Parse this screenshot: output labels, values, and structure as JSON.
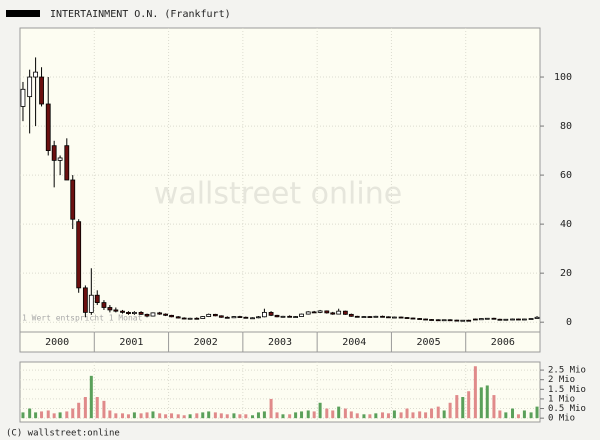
{
  "chart_data": {
    "type": "candlestick",
    "title": "INTERTAINMENT O.N. (Frankfurt)",
    "watermark": "wallstreet online",
    "note": "1 Wert entspricht 1 Monat",
    "legend_color": "#000000",
    "up_color": "#ffffff",
    "down_color": "#6b1010",
    "volume_up_color": "#5aa05a",
    "volume_down_color": "#e08a8a",
    "grid": true,
    "x": [
      2000.04,
      2000.13,
      2000.21,
      2000.29,
      2000.38,
      2000.46,
      2000.54,
      2000.63,
      2000.71,
      2000.79,
      2000.88,
      2000.96,
      2001.04,
      2001.13,
      2001.21,
      2001.29,
      2001.38,
      2001.46,
      2001.54,
      2001.63,
      2001.71,
      2001.79,
      2001.88,
      2001.96,
      2002.04,
      2002.13,
      2002.21,
      2002.29,
      2002.38,
      2002.46,
      2002.54,
      2002.63,
      2002.71,
      2002.79,
      2002.88,
      2002.96,
      2003.04,
      2003.13,
      2003.21,
      2003.29,
      2003.38,
      2003.46,
      2003.54,
      2003.63,
      2003.71,
      2003.79,
      2003.88,
      2003.96,
      2004.04,
      2004.13,
      2004.21,
      2004.29,
      2004.38,
      2004.46,
      2004.54,
      2004.63,
      2004.71,
      2004.79,
      2004.88,
      2004.96,
      2005.04,
      2005.13,
      2005.21,
      2005.29,
      2005.38,
      2005.46,
      2005.54,
      2005.63,
      2005.71,
      2005.79,
      2005.88,
      2005.96,
      2006.04,
      2006.13,
      2006.21,
      2006.29,
      2006.38,
      2006.46,
      2006.54,
      2006.63,
      2006.71,
      2006.79,
      2006.88,
      2006.96
    ],
    "open": [
      88,
      92,
      100,
      100,
      89,
      72,
      66,
      72,
      58,
      41,
      14,
      4,
      11,
      8,
      6,
      5,
      4.5,
      4,
      3.5,
      4,
      3.2,
      2.5,
      3.8,
      3.3,
      2.8,
      2.2,
      1.7,
      1.4,
      1.6,
      1.5,
      2.3,
      3.2,
      2.6,
      2,
      1.8,
      2.3,
      2,
      1.7,
      1.8,
      2.2,
      4,
      2.8,
      2.2,
      2.4,
      2.1,
      2.3,
      3.3,
      4.2,
      4,
      4.6,
      3.8,
      3.3,
      4.5,
      3.2,
      2.4,
      2.2,
      2.3,
      2.1,
      2.4,
      2.2,
      2,
      2.1,
      1.9,
      1.7,
      1.5,
      1.3,
      1.1,
      1,
      0.9,
      1,
      0.85,
      0.7,
      0.8,
      1.3,
      1,
      1.5,
      1.6,
      1.2,
      1.1,
      1.2,
      1.3,
      1.1,
      1.3,
      1.5
    ],
    "high": [
      98,
      103,
      108,
      104,
      100,
      74,
      68,
      75,
      60,
      42,
      15,
      22,
      13,
      9,
      7,
      6,
      5,
      4.5,
      4.5,
      4.5,
      3.5,
      4,
      4.2,
      3.6,
      3,
      2.5,
      2,
      1.8,
      2,
      2.5,
      3.5,
      3.4,
      2.8,
      2.4,
      2.5,
      2.6,
      2.3,
      2,
      2.5,
      5.5,
      4.5,
      3,
      2.6,
      2.8,
      2.5,
      3.5,
      4.5,
      4.6,
      5,
      4.8,
      4.2,
      5.5,
      4.7,
      3.5,
      2.6,
      2.5,
      2.5,
      2.6,
      2.7,
      2.4,
      2.3,
      2.3,
      2.1,
      1.9,
      1.7,
      1.5,
      1.3,
      1.2,
      1.1,
      1.2,
      1,
      0.9,
      1,
      1.5,
      1.6,
      1.7,
      1.8,
      1.4,
      1.3,
      1.5,
      1.5,
      1.4,
      1.6,
      2.5
    ],
    "low": [
      82,
      77,
      80,
      88,
      68,
      55,
      60,
      58,
      38,
      12,
      2,
      3,
      7,
      5,
      4,
      4,
      3.5,
      3,
      3,
      3,
      2,
      2.3,
      3,
      2.5,
      2,
      1.5,
      1.2,
      1.1,
      1.3,
      1.4,
      2.1,
      2.4,
      1.8,
      1.6,
      1.7,
      1.8,
      1.5,
      1.4,
      1.6,
      2,
      2.5,
      2,
      1.9,
      2,
      1.9,
      2.2,
      3.1,
      3.8,
      3.7,
      3.5,
      3,
      3.2,
      3,
      2.2,
      2,
      1.9,
      2,
      2,
      2.1,
      1.8,
      1.7,
      1.8,
      1.6,
      1.4,
      1.2,
      1,
      0.9,
      0.8,
      0.7,
      0.8,
      0.6,
      0.5,
      0.6,
      0.9,
      0.9,
      1.2,
      1.1,
      1,
      0.9,
      1,
      1,
      1,
      1.2,
      1.4
    ],
    "close": [
      95,
      100,
      102,
      89,
      70,
      66,
      67,
      58,
      42,
      14,
      4,
      11,
      8,
      6,
      5,
      4.5,
      4,
      3.5,
      4,
      3.2,
      2.5,
      3.8,
      3.3,
      2.8,
      2.2,
      1.7,
      1.4,
      1.6,
      1.5,
      2.3,
      3.2,
      2.6,
      2,
      1.8,
      2.3,
      2,
      1.7,
      1.8,
      2.2,
      4,
      2.8,
      2.2,
      2.4,
      2.1,
      2.3,
      3.3,
      4.2,
      4,
      4.6,
      3.8,
      3.3,
      4.5,
      3.2,
      2.4,
      2.2,
      2.3,
      2.1,
      2.4,
      2.2,
      2,
      2.1,
      1.9,
      1.7,
      1.5,
      1.3,
      1.1,
      1,
      0.9,
      1,
      0.85,
      0.7,
      0.8,
      0.75,
      1,
      1.5,
      1.6,
      1.2,
      1.1,
      1.2,
      1.3,
      1.1,
      1.3,
      1.5,
      2
    ],
    "volume": [
      0.3,
      0.5,
      0.3,
      0.35,
      0.4,
      0.25,
      0.3,
      0.35,
      0.5,
      0.8,
      1.1,
      2.2,
      1.1,
      0.9,
      0.4,
      0.25,
      0.25,
      0.2,
      0.3,
      0.25,
      0.3,
      0.35,
      0.25,
      0.2,
      0.25,
      0.2,
      0.15,
      0.2,
      0.25,
      0.3,
      0.35,
      0.3,
      0.25,
      0.2,
      0.25,
      0.2,
      0.2,
      0.15,
      0.3,
      0.35,
      1.0,
      0.3,
      0.2,
      0.2,
      0.3,
      0.35,
      0.4,
      0.35,
      0.8,
      0.5,
      0.4,
      0.6,
      0.5,
      0.35,
      0.25,
      0.2,
      0.2,
      0.25,
      0.3,
      0.25,
      0.4,
      0.3,
      0.5,
      0.3,
      0.35,
      0.3,
      0.5,
      0.6,
      0.4,
      0.8,
      1.2,
      1.1,
      1.4,
      2.7,
      1.6,
      1.7,
      1.2,
      0.4,
      0.3,
      0.5,
      0.2,
      0.4,
      0.3,
      0.6
    ],
    "xlim": [
      2000,
      2007
    ],
    "xticks": [
      {
        "value": 2000.5,
        "label": "2000"
      },
      {
        "value": 2001.5,
        "label": "2001"
      },
      {
        "value": 2002.5,
        "label": "2002"
      },
      {
        "value": 2003.5,
        "label": "2003"
      },
      {
        "value": 2004.5,
        "label": "2004"
      },
      {
        "value": 2005.5,
        "label": "2005"
      },
      {
        "value": 2006.5,
        "label": "2006"
      }
    ],
    "xgrid": [
      2001,
      2002,
      2003,
      2004,
      2005,
      2006
    ],
    "ylim": [
      -4,
      120
    ],
    "yticks": [
      0,
      20,
      40,
      60,
      80,
      100
    ],
    "volume_ylim": [
      -0.2,
      2.92
    ],
    "volume_yticks": [
      {
        "value": 0,
        "label": "0 Mio"
      },
      {
        "value": 0.5,
        "label": "0.5 Mio"
      },
      {
        "value": 1,
        "label": "1 Mio"
      },
      {
        "value": 1.5,
        "label": "1.5 Mio"
      },
      {
        "value": 2,
        "label": "2 Mio"
      },
      {
        "value": 2.5,
        "label": "2.5 Mio"
      }
    ]
  },
  "footer": "(C) wallstreet:online"
}
